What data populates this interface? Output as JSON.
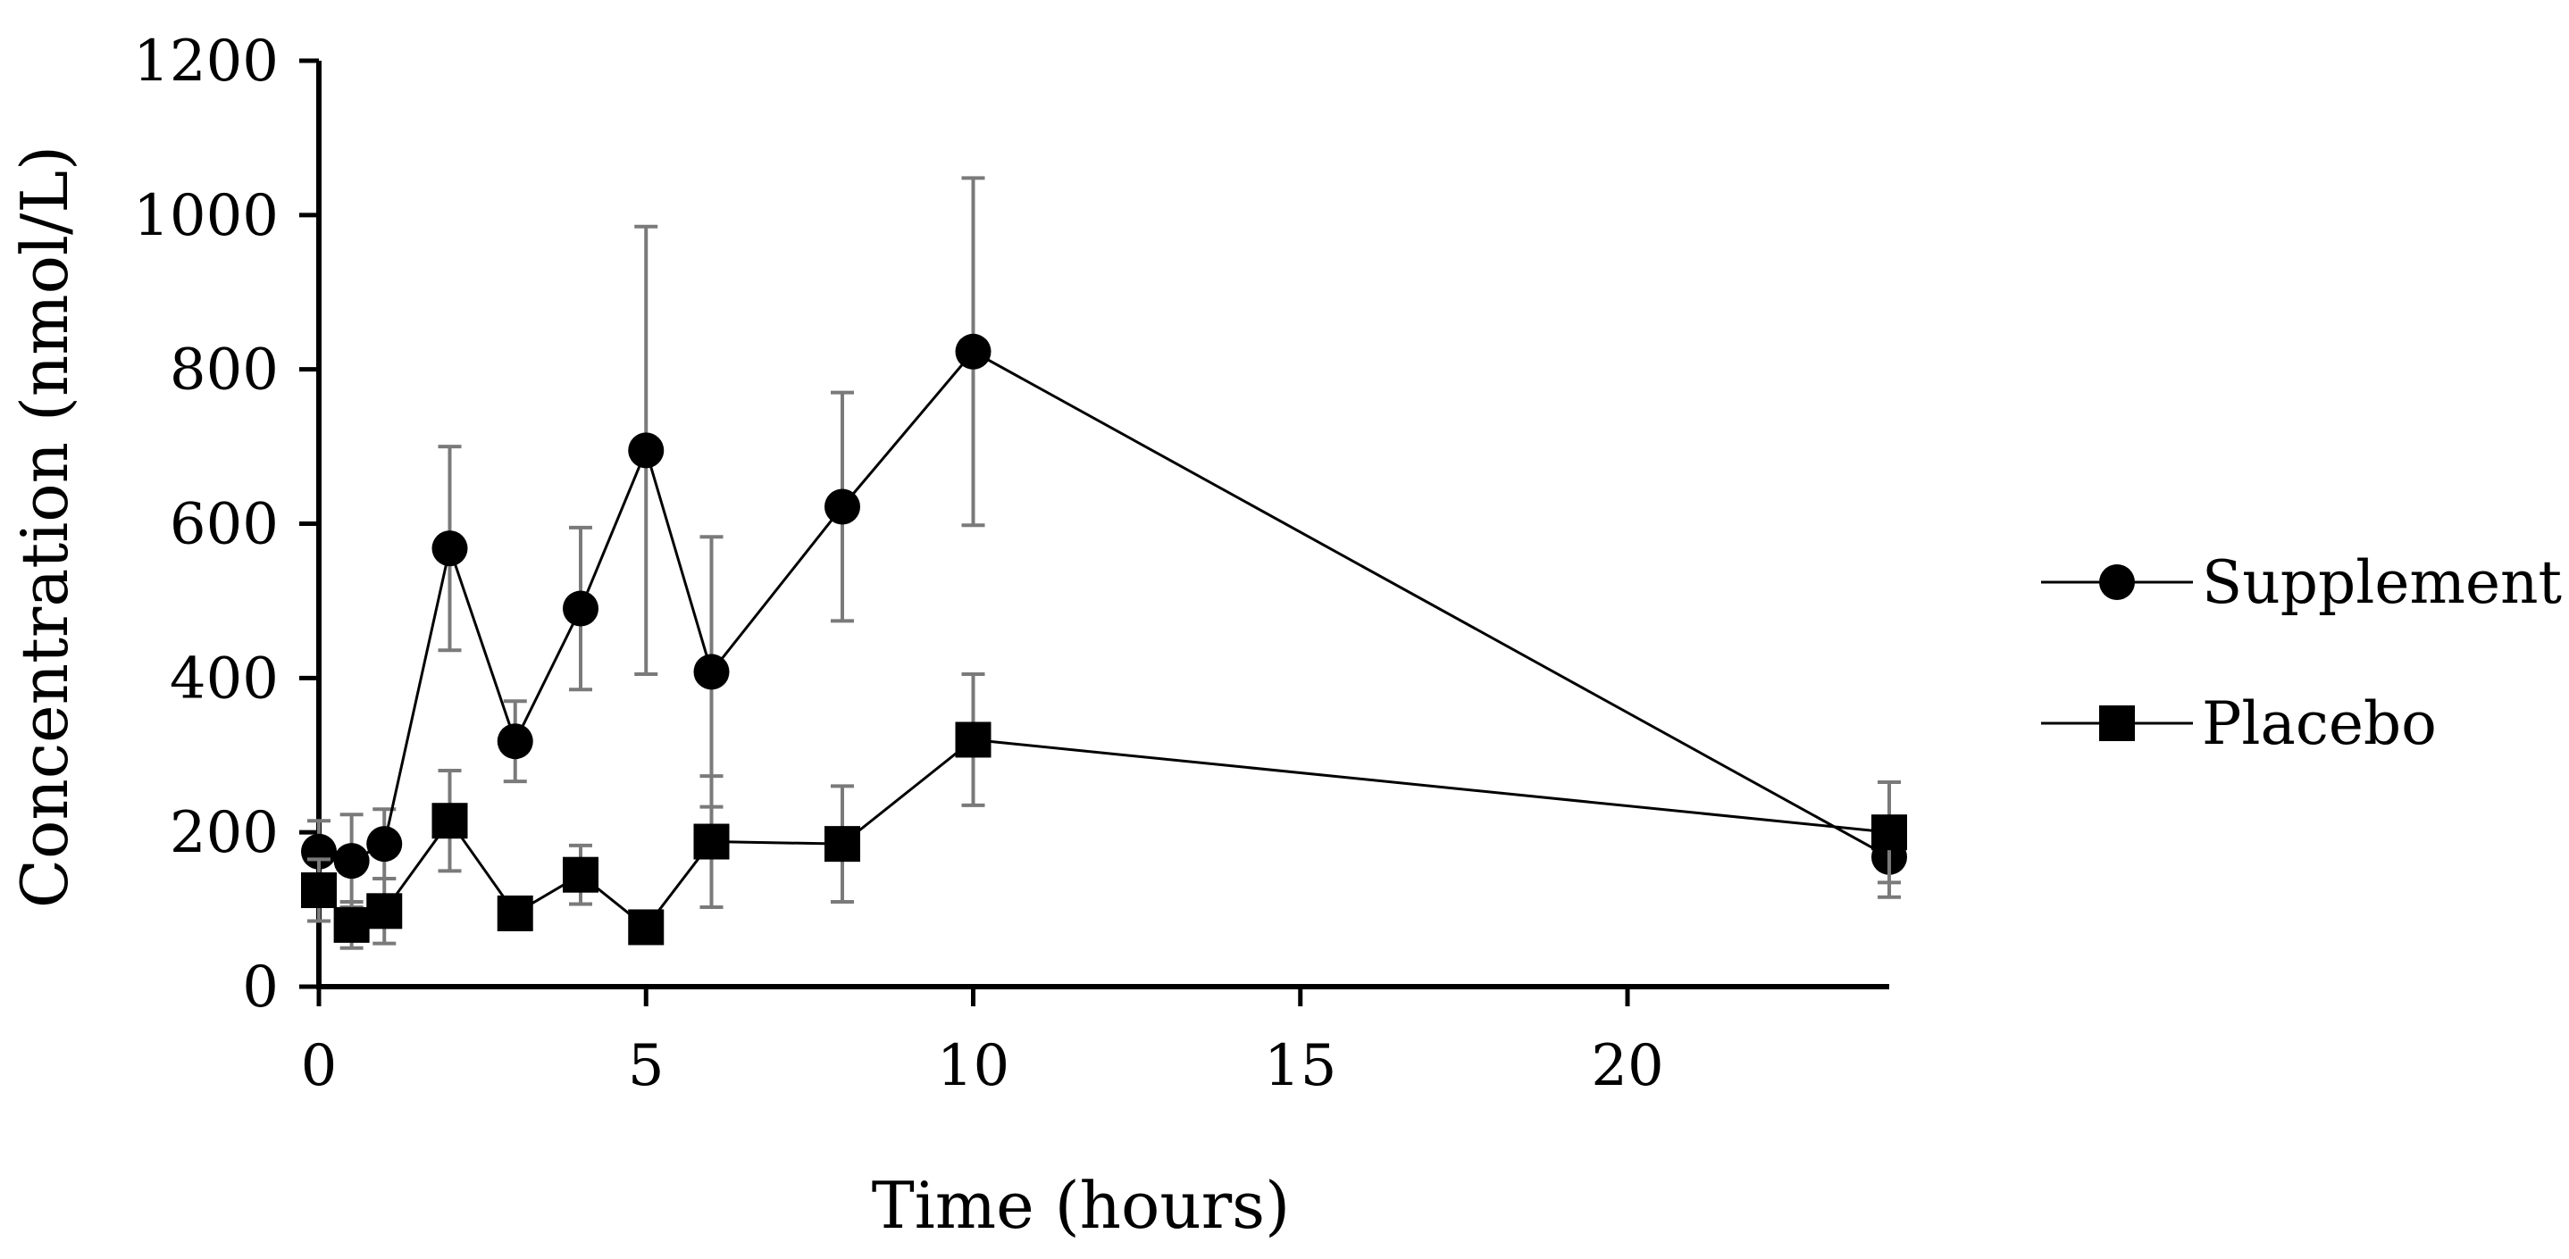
{
  "chart_data": {
    "type": "line",
    "title": "",
    "xlabel": "Time (hours)",
    "ylabel": "Concentration (nmol/L)",
    "xlim": [
      0,
      24
    ],
    "ylim": [
      0,
      1200
    ],
    "xticks": [
      0,
      5,
      10,
      15,
      20
    ],
    "yticks": [
      0,
      200,
      400,
      600,
      800,
      1000,
      1200
    ],
    "grid": false,
    "legend_position": "right",
    "series": [
      {
        "name": "Supplement",
        "marker": "circle",
        "x": [
          0,
          0.5,
          1,
          2,
          3,
          4,
          5,
          6,
          8,
          10,
          24
        ],
        "y": [
          175,
          163,
          185,
          568,
          318,
          490,
          695,
          408,
          622,
          823,
          168
        ],
        "err": [
          40,
          60,
          45,
          132,
          52,
          105,
          290,
          175,
          148,
          225,
          52
        ]
      },
      {
        "name": "Placebo",
        "marker": "square",
        "x": [
          0,
          0.5,
          1,
          2,
          3,
          4,
          5,
          6,
          8,
          10,
          24
        ],
        "y": [
          125,
          80,
          98,
          215,
          95,
          145,
          77,
          188,
          185,
          320,
          200
        ],
        "err": [
          40,
          30,
          42,
          65,
          15,
          38,
          12,
          85,
          75,
          85,
          65
        ]
      }
    ]
  }
}
